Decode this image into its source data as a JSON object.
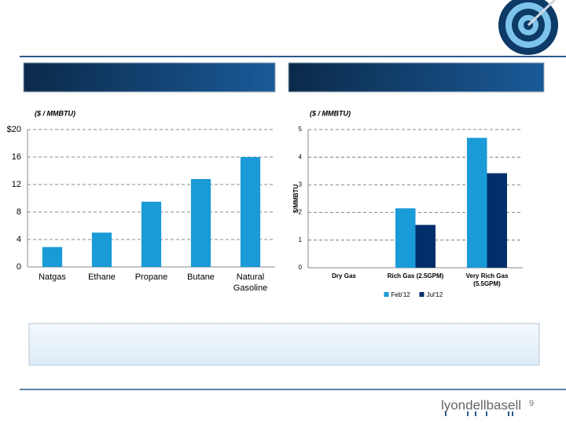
{
  "chart_data": [
    {
      "type": "bar",
      "subtitle": "($ / MMBTU)",
      "categories": [
        "Natgas",
        "Ethane",
        "Propane",
        "Butane",
        "Natural Gasoline"
      ],
      "values": [
        2.9,
        5.0,
        9.5,
        12.8,
        16.0
      ],
      "color": "#1a9ad6",
      "ylim": [
        0,
        20
      ],
      "yticks": [
        0,
        4,
        8,
        12,
        16,
        {
          "value": 20,
          "label": "$20"
        }
      ],
      "grid": true
    },
    {
      "type": "grouped-bar",
      "subtitle": "($ / MMBTU)",
      "y_label": "$/MMBTU",
      "categories": [
        "Dry Gas",
        "Rich Gas (2.5GPM)",
        "Very Rich Gas (5.5GPM)"
      ],
      "series": [
        {
          "name": "Feb'12",
          "color": "#1a9ad6",
          "values": [
            null,
            2.15,
            4.7
          ]
        },
        {
          "name": "Jul'12",
          "color": "#002f6c",
          "values": [
            null,
            1.55,
            3.42
          ]
        }
      ],
      "ylim": [
        0,
        5
      ],
      "yticks": [
        0,
        1,
        2,
        3,
        4,
        5
      ],
      "grid": true,
      "legend": "bottom"
    }
  ],
  "footer": {
    "logo": "lyondellbasell",
    "page_number": "9"
  }
}
